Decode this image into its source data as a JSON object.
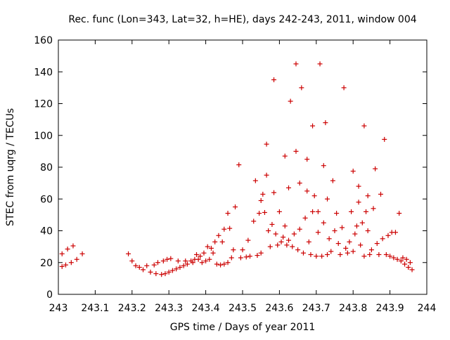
{
  "chart_data": {
    "type": "scatter",
    "title": "Rec. func (Lon=343, Lat=32, h=HE), days 242-243, 2011, window 004",
    "xlabel": "GPS time / Days of year 2011",
    "ylabel": "STEC from uqrg / TECUs",
    "xlim": [
      243,
      244
    ],
    "ylim": [
      0,
      160
    ],
    "xticks": [
      243,
      243.1,
      243.2,
      243.3,
      243.4,
      243.5,
      243.6,
      243.7,
      243.8,
      243.9,
      244
    ],
    "xtick_labels": [
      "243",
      "243.1",
      "243.2",
      "243.3",
      "243.4",
      "243.5",
      "243.6",
      "243.7",
      "243.8",
      "243.9",
      "244"
    ],
    "yticks": [
      0,
      20,
      40,
      60,
      80,
      100,
      120,
      140,
      160
    ],
    "ytick_labels": [
      "0",
      "20",
      "40",
      "60",
      "80",
      "100",
      "120",
      "140",
      "160"
    ],
    "grid": false,
    "marker": "plus",
    "color": "#cc0000",
    "series": [
      {
        "name": "",
        "points": [
          [
            243.01,
            17.5
          ],
          [
            243.01,
            25.5
          ],
          [
            243.02,
            18.5
          ],
          [
            243.025,
            28.5
          ],
          [
            243.035,
            20
          ],
          [
            243.04,
            30.5
          ],
          [
            243.05,
            22
          ],
          [
            243.065,
            25.5
          ],
          [
            243.19,
            25.5
          ],
          [
            243.2,
            21
          ],
          [
            243.21,
            18
          ],
          [
            243.22,
            17
          ],
          [
            243.23,
            15.5
          ],
          [
            243.24,
            18
          ],
          [
            243.25,
            14
          ],
          [
            243.26,
            18.5
          ],
          [
            243.265,
            13
          ],
          [
            243.27,
            20
          ],
          [
            243.28,
            12.5
          ],
          [
            243.285,
            21
          ],
          [
            243.29,
            13
          ],
          [
            243.295,
            22
          ],
          [
            243.3,
            14
          ],
          [
            243.305,
            22.5
          ],
          [
            243.31,
            15
          ],
          [
            243.32,
            16
          ],
          [
            243.325,
            21
          ],
          [
            243.33,
            17
          ],
          [
            243.34,
            18
          ],
          [
            243.345,
            21
          ],
          [
            243.35,
            19
          ],
          [
            243.36,
            21
          ],
          [
            243.365,
            20
          ],
          [
            243.37,
            22
          ],
          [
            243.375,
            25
          ],
          [
            243.38,
            22
          ],
          [
            243.385,
            24
          ],
          [
            243.39,
            20
          ],
          [
            243.395,
            26
          ],
          [
            243.4,
            21
          ],
          [
            243.405,
            30
          ],
          [
            243.41,
            22
          ],
          [
            243.415,
            29
          ],
          [
            243.42,
            26
          ],
          [
            243.425,
            33
          ],
          [
            243.43,
            19
          ],
          [
            243.435,
            37
          ],
          [
            243.44,
            18.5
          ],
          [
            243.445,
            33
          ],
          [
            243.45,
            19
          ],
          [
            243.45,
            41
          ],
          [
            243.46,
            20
          ],
          [
            243.46,
            51
          ],
          [
            243.465,
            41.5
          ],
          [
            243.47,
            23
          ],
          [
            243.475,
            28
          ],
          [
            243.48,
            55
          ],
          [
            243.49,
            81.5
          ],
          [
            243.495,
            23
          ],
          [
            243.5,
            28
          ],
          [
            243.51,
            23.5
          ],
          [
            243.515,
            34
          ],
          [
            243.52,
            24
          ],
          [
            243.53,
            46
          ],
          [
            243.535,
            71.5
          ],
          [
            243.54,
            24.5
          ],
          [
            243.545,
            51
          ],
          [
            243.55,
            26
          ],
          [
            243.55,
            59
          ],
          [
            243.555,
            63
          ],
          [
            243.56,
            51.5
          ],
          [
            243.565,
            75
          ],
          [
            243.565,
            94.5
          ],
          [
            243.57,
            40
          ],
          [
            243.575,
            30
          ],
          [
            243.58,
            44
          ],
          [
            243.585,
            64
          ],
          [
            243.585,
            135
          ],
          [
            243.59,
            38
          ],
          [
            243.595,
            31
          ],
          [
            243.6,
            52
          ],
          [
            243.605,
            33
          ],
          [
            243.61,
            36
          ],
          [
            243.615,
            43
          ],
          [
            243.615,
            87
          ],
          [
            243.62,
            31
          ],
          [
            243.625,
            34
          ],
          [
            243.625,
            67
          ],
          [
            243.63,
            121.5
          ],
          [
            243.635,
            30
          ],
          [
            243.64,
            38
          ],
          [
            243.645,
            90
          ],
          [
            243.645,
            145
          ],
          [
            243.65,
            28
          ],
          [
            243.655,
            41
          ],
          [
            243.655,
            70
          ],
          [
            243.66,
            130
          ],
          [
            243.665,
            26
          ],
          [
            243.67,
            48
          ],
          [
            243.675,
            85
          ],
          [
            243.675,
            65
          ],
          [
            243.68,
            33
          ],
          [
            243.685,
            25
          ],
          [
            243.69,
            52
          ],
          [
            243.69,
            106
          ],
          [
            243.695,
            62
          ],
          [
            243.7,
            24
          ],
          [
            243.705,
            52
          ],
          [
            243.705,
            39
          ],
          [
            243.71,
            145
          ],
          [
            243.715,
            24
          ],
          [
            243.72,
            45
          ],
          [
            243.72,
            81
          ],
          [
            243.725,
            108
          ],
          [
            243.73,
            60
          ],
          [
            243.73,
            25
          ],
          [
            243.735,
            35
          ],
          [
            243.74,
            27
          ],
          [
            243.745,
            71.5
          ],
          [
            243.75,
            40
          ],
          [
            243.755,
            51
          ],
          [
            243.76,
            32
          ],
          [
            243.765,
            25
          ],
          [
            243.77,
            42
          ],
          [
            243.775,
            130
          ],
          [
            243.78,
            29
          ],
          [
            243.785,
            26
          ],
          [
            243.79,
            33
          ],
          [
            243.795,
            52
          ],
          [
            243.8,
            77.5
          ],
          [
            243.8,
            27
          ],
          [
            243.805,
            38
          ],
          [
            243.81,
            43
          ],
          [
            243.815,
            58
          ],
          [
            243.815,
            68
          ],
          [
            243.82,
            31
          ],
          [
            243.825,
            45
          ],
          [
            243.83,
            106
          ],
          [
            243.83,
            24
          ],
          [
            243.835,
            52
          ],
          [
            243.84,
            62
          ],
          [
            243.84,
            40
          ],
          [
            243.845,
            25
          ],
          [
            243.85,
            28
          ],
          [
            243.855,
            54
          ],
          [
            243.86,
            79
          ],
          [
            243.865,
            32
          ],
          [
            243.87,
            25
          ],
          [
            243.875,
            63
          ],
          [
            243.88,
            35
          ],
          [
            243.885,
            97.5
          ],
          [
            243.89,
            25
          ],
          [
            243.895,
            37
          ],
          [
            243.9,
            24
          ],
          [
            243.905,
            39
          ],
          [
            243.91,
            23
          ],
          [
            243.915,
            39
          ],
          [
            243.92,
            22
          ],
          [
            243.925,
            51
          ],
          [
            243.93,
            21
          ],
          [
            243.935,
            23
          ],
          [
            243.94,
            19
          ],
          [
            243.945,
            22
          ],
          [
            243.95,
            17
          ],
          [
            243.955,
            20
          ],
          [
            243.96,
            15.5
          ]
        ]
      }
    ]
  }
}
